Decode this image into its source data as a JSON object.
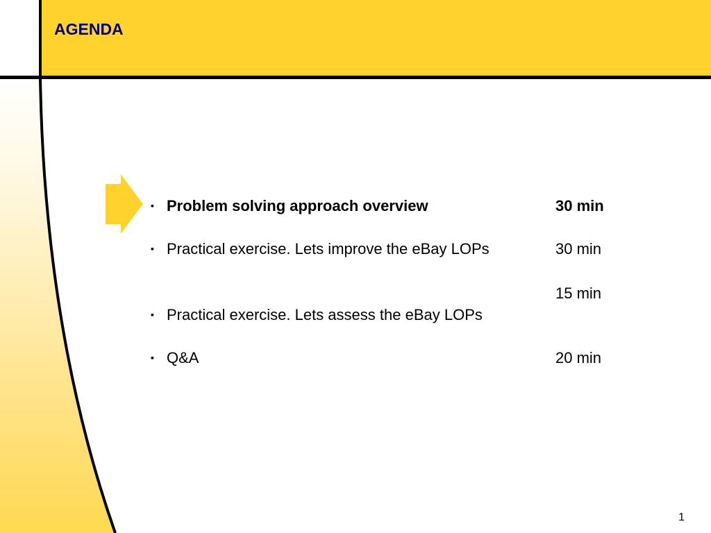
{
  "slide": {
    "title": "AGENDA",
    "page_number": "1",
    "accent_color": "#FFD22E",
    "header_line_color": "#000000",
    "title_color": "#00007A",
    "arrow_icon": "right-pointing-chevron-arrow"
  },
  "agenda": {
    "items": [
      {
        "topic": "Problem solving approach overview",
        "duration": "30 min",
        "emphasis": "bold"
      },
      {
        "topic": "Practical exercise. Lets improve the eBay LOPs",
        "duration": "30 min",
        "emphasis": "normal"
      },
      {
        "topic": "Practical exercise. Lets assess the eBay LOPs",
        "duration": "15 min",
        "emphasis": "normal"
      },
      {
        "topic": "Q&A",
        "duration": "20 min",
        "emphasis": "normal"
      }
    ],
    "bullet_glyph": "▪"
  }
}
